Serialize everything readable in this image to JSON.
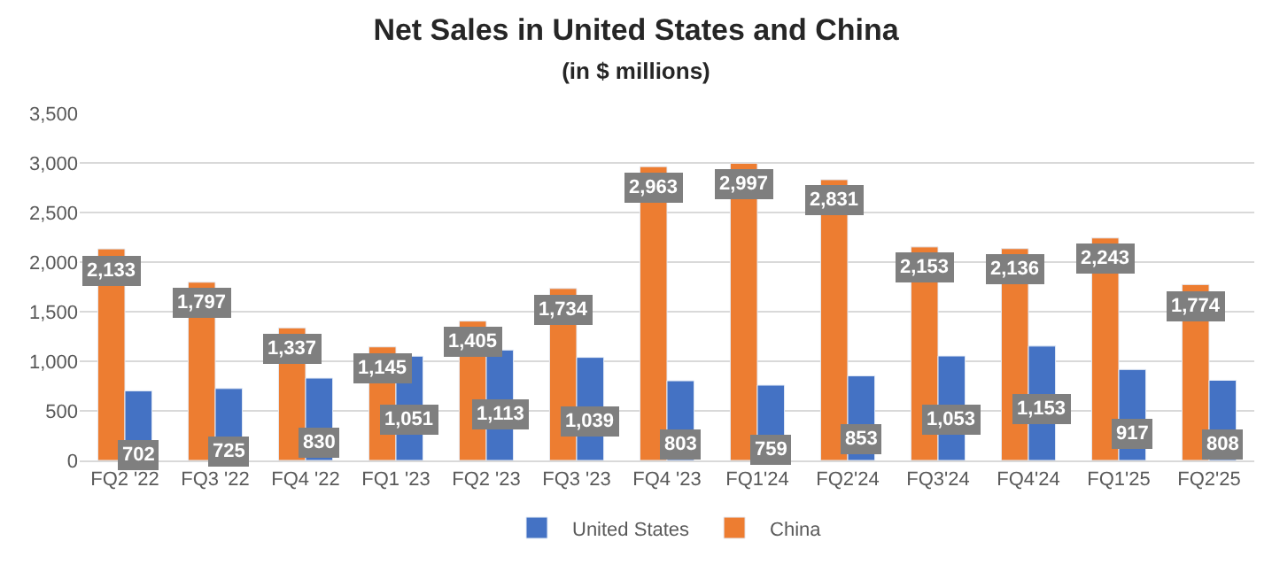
{
  "chart_data": {
    "type": "bar",
    "title": "Net Sales in United States and China",
    "subtitle": "(in $ millions)",
    "categories": [
      "FQ2 '22",
      "FQ3 '22",
      "FQ4 '22",
      "FQ1 '23",
      "FQ2 '23",
      "FQ3 '23",
      "FQ4 '23",
      "FQ1'24",
      "FQ2'24",
      "FQ3'24",
      "FQ4'24",
      "FQ1'25",
      "FQ2'25"
    ],
    "series": [
      {
        "name": "China",
        "color": "#ed7d31",
        "values": [
          2133,
          1797,
          1337,
          1145,
          1405,
          1734,
          2963,
          2997,
          2831,
          2153,
          2136,
          2243,
          1774
        ],
        "value_labels": [
          "2,133",
          "1,797",
          "1,337",
          "1,145",
          "1,405",
          "1,734",
          "2,963",
          "2,997",
          "2,831",
          "2,153",
          "2,136",
          "2,243",
          "1,774"
        ]
      },
      {
        "name": "United States",
        "color": "#4472c4",
        "values": [
          702,
          725,
          830,
          1051,
          1113,
          1039,
          803,
          759,
          853,
          1053,
          1153,
          917,
          808
        ],
        "value_labels": [
          "702",
          "725",
          "830",
          "1,051",
          "1,113",
          "1,039",
          "803",
          "759",
          "853",
          "1,053",
          "1,153",
          "917",
          "808"
        ]
      }
    ],
    "ylim": [
      0,
      3500
    ],
    "yticks": [
      0,
      500,
      {
        "value": 1000,
        "label": "1,000"
      },
      {
        "value": 1500,
        "label": "1,500"
      },
      {
        "value": 2000,
        "label": "2,000"
      },
      {
        "value": 2500,
        "label": "2,500"
      },
      {
        "value": 3000,
        "label": "3,000"
      },
      {
        "value": 3500,
        "label": "3,500"
      }
    ],
    "grid": "y",
    "legend": "bottom",
    "data_labels": true
  }
}
